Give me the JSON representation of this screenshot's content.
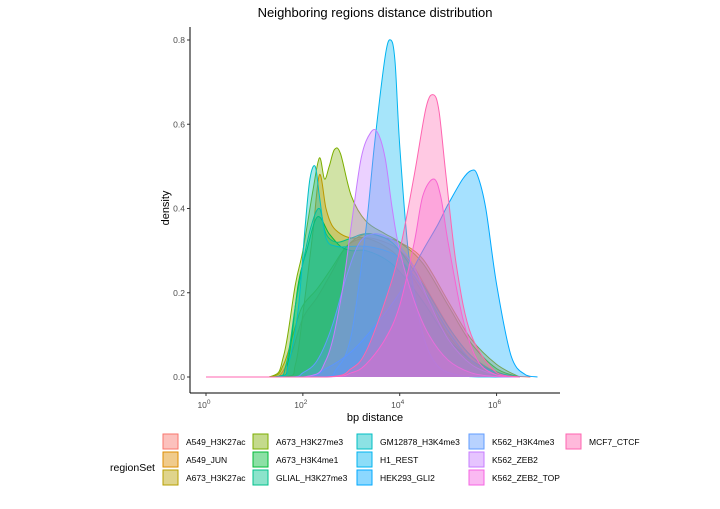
{
  "chart_data": {
    "type": "area",
    "title": "Neighboring regions distance distribution",
    "xlabel": "bp distance",
    "ylabel": "density",
    "x_scale": "log10",
    "xlim": [
      1,
      10000000
    ],
    "ylim": [
      0,
      0.85
    ],
    "x_ticks": [
      {
        "value": 1,
        "base": "10",
        "exp": "0"
      },
      {
        "value": 100,
        "base": "10",
        "exp": "2"
      },
      {
        "value": 10000,
        "base": "10",
        "exp": "4"
      },
      {
        "value": 1000000,
        "base": "10",
        "exp": "6"
      }
    ],
    "y_ticks": [
      0.0,
      0.2,
      0.4,
      0.6,
      0.8
    ],
    "y_tick_labels": [
      "0.0",
      "0.2",
      "0.4",
      "0.6",
      "0.8"
    ],
    "grid": false,
    "legend": {
      "title": "regionSet",
      "position": "bottom",
      "columns": 5
    },
    "series": [
      {
        "name": "A549_H3K27ac",
        "color": "#F8766D",
        "x": [
          1,
          20,
          32,
          56,
          100,
          200,
          400,
          800,
          2000,
          5000,
          10000,
          20000,
          40000,
          80000,
          150000,
          300000,
          600000,
          1000000,
          2000000,
          5000000
        ],
        "y": [
          0,
          0,
          0.002,
          0.05,
          0.14,
          0.19,
          0.25,
          0.31,
          0.33,
          0.32,
          0.3,
          0.26,
          0.2,
          0.14,
          0.09,
          0.05,
          0.025,
          0.012,
          0.003,
          0
        ]
      },
      {
        "name": "A549_JUN",
        "color": "#DE8C00",
        "x": [
          1,
          40,
          70,
          100,
          160,
          220,
          300,
          400,
          600,
          1000,
          2000,
          5000,
          10000,
          30000,
          100000,
          300000,
          1000000,
          3000000
        ],
        "y": [
          0,
          0,
          0.03,
          0.15,
          0.34,
          0.48,
          0.4,
          0.36,
          0.34,
          0.33,
          0.33,
          0.31,
          0.28,
          0.2,
          0.1,
          0.04,
          0.01,
          0
        ]
      },
      {
        "name": "A673_H3K27ac",
        "color": "#B79F00",
        "x": [
          1,
          20,
          40,
          70,
          100,
          200,
          400,
          800,
          2000,
          5000,
          10000,
          30000,
          100000,
          300000,
          1000000,
          3000000
        ],
        "y": [
          0,
          0,
          0.03,
          0.12,
          0.17,
          0.21,
          0.26,
          0.31,
          0.34,
          0.33,
          0.32,
          0.28,
          0.18,
          0.09,
          0.03,
          0
        ]
      },
      {
        "name": "A673_H3K27me3",
        "color": "#7CAE00",
        "x": [
          1,
          20,
          40,
          70,
          100,
          160,
          220,
          280,
          350,
          450,
          600,
          1000,
          2000,
          5000,
          10000,
          30000,
          100000,
          300000,
          1000000,
          3000000
        ],
        "y": [
          0,
          0,
          0.05,
          0.22,
          0.3,
          0.44,
          0.52,
          0.47,
          0.5,
          0.54,
          0.53,
          0.43,
          0.37,
          0.34,
          0.32,
          0.27,
          0.17,
          0.08,
          0.02,
          0
        ]
      },
      {
        "name": "A673_H3K4me1",
        "color": "#00BA38",
        "x": [
          1,
          30,
          50,
          80,
          120,
          200,
          350,
          600,
          1000,
          2000,
          5000,
          10000,
          30000,
          100000,
          300000,
          1000000,
          3000000
        ],
        "y": [
          0,
          0,
          0.04,
          0.22,
          0.3,
          0.38,
          0.34,
          0.31,
          0.3,
          0.3,
          0.28,
          0.25,
          0.18,
          0.09,
          0.04,
          0.01,
          0
        ]
      },
      {
        "name": "GLIAL_H3K27me3",
        "color": "#00C08B",
        "x": [
          1,
          25,
          45,
          70,
          100,
          150,
          220,
          300,
          500,
          1000,
          2000,
          5000,
          10000,
          30000,
          100000,
          300000,
          1000000,
          3000000
        ],
        "y": [
          0,
          0,
          0.03,
          0.17,
          0.27,
          0.36,
          0.4,
          0.34,
          0.32,
          0.33,
          0.34,
          0.33,
          0.3,
          0.22,
          0.12,
          0.05,
          0.01,
          0
        ]
      },
      {
        "name": "GM12878_H3K4me3",
        "color": "#00BFC4",
        "x": [
          1,
          30,
          50,
          80,
          110,
          140,
          180,
          220,
          300,
          500,
          1000,
          2000,
          5000,
          10000,
          30000,
          100000,
          300000,
          1000000,
          3000000
        ],
        "y": [
          0,
          0,
          0.03,
          0.16,
          0.35,
          0.47,
          0.5,
          0.43,
          0.33,
          0.31,
          0.31,
          0.31,
          0.3,
          0.28,
          0.21,
          0.11,
          0.04,
          0.01,
          0
        ]
      },
      {
        "name": "H1_REST",
        "color": "#00B4F0",
        "x": [
          1,
          200,
          500,
          1000,
          2000,
          3000,
          5000,
          6500,
          8000,
          10000,
          15000,
          25000,
          40000,
          70000,
          150000,
          300000,
          1000000,
          3000000
        ],
        "y": [
          0,
          0,
          0.02,
          0.1,
          0.35,
          0.55,
          0.76,
          0.8,
          0.75,
          0.55,
          0.3,
          0.14,
          0.06,
          0.02,
          0.005,
          0.001,
          0,
          0
        ]
      },
      {
        "name": "HEK293_GLI2",
        "color": "#00A9FF",
        "x": [
          1,
          100,
          300,
          1000,
          3000,
          10000,
          30000,
          60000,
          100000,
          200000,
          300000,
          400000,
          600000,
          1000000,
          2000000,
          4000000,
          7000000
        ],
        "y": [
          0,
          0,
          0.02,
          0.06,
          0.12,
          0.2,
          0.3,
          0.36,
          0.41,
          0.47,
          0.49,
          0.48,
          0.4,
          0.22,
          0.05,
          0.005,
          0
        ]
      },
      {
        "name": "K562_H3K4me3",
        "color": "#619CFF",
        "x": [
          1,
          50,
          100,
          200,
          400,
          800,
          1500,
          3000,
          6000,
          10000,
          20000,
          40000,
          100000,
          300000,
          1000000,
          3000000
        ],
        "y": [
          0,
          0,
          0.01,
          0.04,
          0.12,
          0.24,
          0.32,
          0.34,
          0.33,
          0.31,
          0.26,
          0.18,
          0.09,
          0.03,
          0.005,
          0
        ]
      },
      {
        "name": "K562_ZEB2",
        "color": "#C77CFF",
        "x": [
          1,
          100,
          300,
          600,
          1000,
          1600,
          2500,
          3500,
          5000,
          7000,
          10000,
          20000,
          40000,
          100000,
          300000,
          1000000,
          3000000
        ],
        "y": [
          0,
          0,
          0.04,
          0.18,
          0.36,
          0.52,
          0.58,
          0.58,
          0.52,
          0.4,
          0.3,
          0.18,
          0.1,
          0.04,
          0.01,
          0.001,
          0
        ]
      },
      {
        "name": "K562_ZEB2_TOP",
        "color": "#F564E3",
        "x": [
          1,
          300,
          1000,
          2000,
          5000,
          10000,
          20000,
          30000,
          50000,
          70000,
          100000,
          200000,
          400000,
          1000000,
          3000000
        ],
        "y": [
          0,
          0,
          0.01,
          0.03,
          0.09,
          0.17,
          0.32,
          0.43,
          0.47,
          0.43,
          0.32,
          0.14,
          0.04,
          0.005,
          0
        ]
      },
      {
        "name": "MCF7_CTCF",
        "color": "#FF64B0",
        "x": [
          1,
          300,
          1000,
          2000,
          5000,
          10000,
          20000,
          35000,
          50000,
          65000,
          90000,
          150000,
          300000,
          1000000,
          3000000
        ],
        "y": [
          0,
          0,
          0.02,
          0.06,
          0.18,
          0.3,
          0.48,
          0.64,
          0.67,
          0.63,
          0.48,
          0.26,
          0.1,
          0.01,
          0
        ]
      }
    ]
  }
}
